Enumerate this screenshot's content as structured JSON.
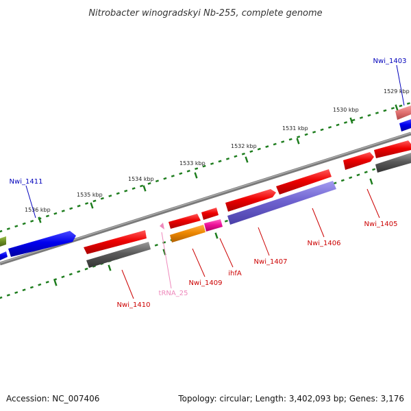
{
  "title": "Nitrobacter winogradskyi Nb-255, complete genome",
  "footer": {
    "accession": "Accession: NC_007406",
    "topology": "Topology: circular; Length: 3,402,093 bp; Genes: 3,176"
  },
  "colors": {
    "backbone": "#7a7a7a",
    "ticks": "#1e7d1e",
    "cds_red": "#ee0000",
    "cds_blue": "#0000ee",
    "cds_gray": "#555555",
    "cds_purple": "#6f63d0",
    "cds_orange": "#ee8800",
    "cds_magenta": "#ee1199",
    "cds_olive": "#6b8e23",
    "cds_salmon": "#e07070",
    "trna_pink": "#ee88bb",
    "label_red": "#cc0000",
    "label_blue": "#0000bb",
    "label_pink": "#ee88bb"
  },
  "kbp_labels": [
    "1529 kbp",
    "1530 kbp",
    "1531 kbp",
    "1532 kbp",
    "1533 kbp",
    "1534 kbp",
    "1535 kbp",
    "1536 kbp"
  ],
  "genes": [
    {
      "id": "nwi1403",
      "label": "Nwi_1403",
      "color": "label_blue"
    },
    {
      "id": "nwi1411",
      "label": "Nwi_1411",
      "color": "label_blue"
    },
    {
      "id": "nwi1405",
      "label": "Nwi_1405",
      "color": "label_red"
    },
    {
      "id": "nwi1406",
      "label": "Nwi_1406",
      "color": "label_red"
    },
    {
      "id": "nwi1407",
      "label": "Nwi_1407",
      "color": "label_red"
    },
    {
      "id": "ihfa",
      "label": "ihfA",
      "color": "label_red"
    },
    {
      "id": "nwi1409",
      "label": "Nwi_1409",
      "color": "label_red"
    },
    {
      "id": "trna25",
      "label": "tRNA_25",
      "color": "label_pink"
    },
    {
      "id": "nwi1410",
      "label": "Nwi_1410",
      "color": "label_red"
    }
  ]
}
